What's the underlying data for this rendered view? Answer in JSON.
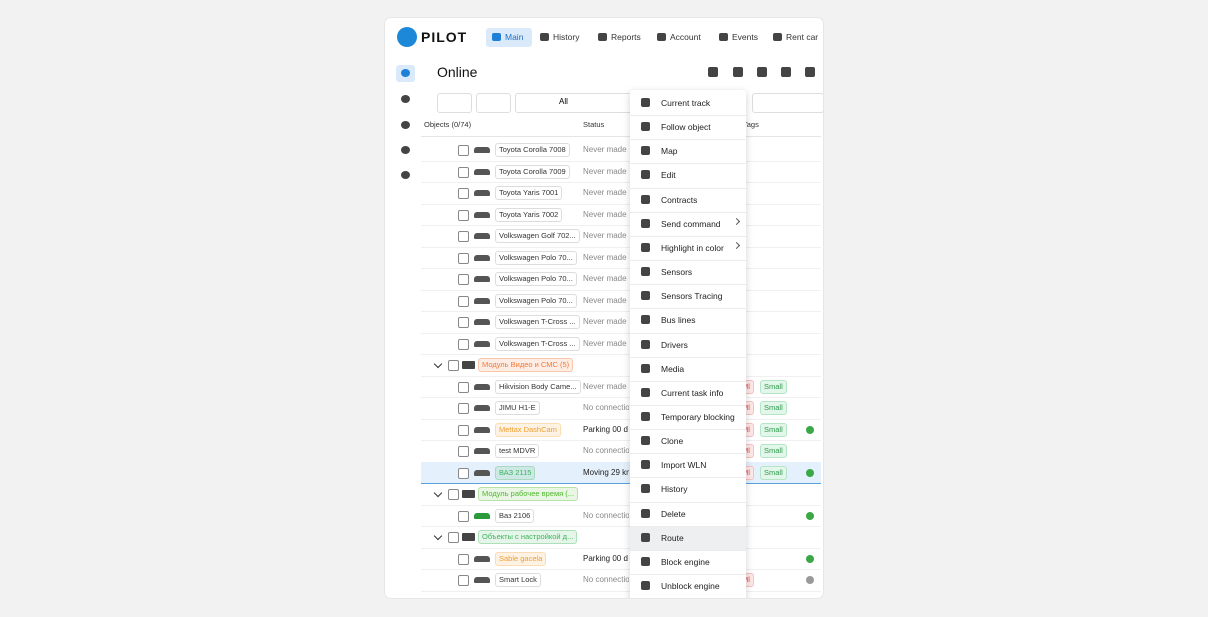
{
  "header": {
    "logo": "PILOT",
    "nav": [
      "Main",
      "History",
      "Reports",
      "Account",
      "Events",
      "Rent car"
    ]
  },
  "page": {
    "title": "Online"
  },
  "filter": {
    "status": "All"
  },
  "table": {
    "columns": [
      "Objects (0/74)",
      "Status",
      "Tags"
    ],
    "items": [
      {
        "name": "Toyota Corolla 7008",
        "status": "Never made c"
      },
      {
        "name": "Toyota Corolla 7009",
        "status": "Never made c"
      },
      {
        "name": "Toyota Yaris 7001",
        "status": "Never made c"
      },
      {
        "name": "Toyota Yaris 7002",
        "status": "Never made c"
      },
      {
        "name": "Volkswagen Golf 702...",
        "status": "Never made c"
      },
      {
        "name": "Volkswagen Polo 70...",
        "status": "Never made c"
      },
      {
        "name": "Volkswagen Polo 70...",
        "status": "Never made c"
      },
      {
        "name": "Volkswagen Polo 70...",
        "status": "Never made c"
      },
      {
        "name": "Volkswagen T-Cross ...",
        "status": "Never made c"
      },
      {
        "name": "Volkswagen T-Cross ...",
        "status": "Never made c"
      },
      {
        "group": "Модуль Видео и СМС (5)",
        "color": "#f07a3a"
      },
      {
        "name": "Hikvision Body Came...",
        "status": "Never made c",
        "tags": [
          "Ml",
          "Small"
        ]
      },
      {
        "name": "JIMU H1-E",
        "status": "No connectio",
        "tags": [
          "Ml",
          "Small"
        ]
      },
      {
        "name": "Mettax DashCam",
        "status": "Parking 00 d",
        "tags": [
          "Ml",
          "Small"
        ],
        "color": "#f0a030",
        "key": true
      },
      {
        "name": "test MDVR",
        "status": "No connectio",
        "tags": [
          "Ml",
          "Small"
        ]
      },
      {
        "name": "ВАЗ 2115",
        "status": "Moving 29 km",
        "tags": [
          "Ml",
          "Small"
        ],
        "color": "#3cb55a",
        "key": true,
        "selected": true
      },
      {
        "group": "Модуль рабочее время (...",
        "color": "#52b830"
      },
      {
        "name": "Ваз 2106",
        "status": "No connectio",
        "key": true
      },
      {
        "group": "Объекты с настройкой д...",
        "color": "#3cb55a"
      },
      {
        "name": "Sable gacela",
        "status": "Parking 00 d",
        "color": "#f0a030",
        "key": true
      },
      {
        "name": "Smart Lock",
        "status": "No connectio",
        "tags": [
          "Ml"
        ],
        "key": true
      }
    ]
  },
  "menu": {
    "items": [
      "Current track",
      "Follow object",
      "Map",
      "Edit",
      "Contracts",
      "Send command",
      "Highlight in color",
      "Sensors",
      "Sensors Tracing",
      "Bus lines",
      "Drivers",
      "Media",
      "Current task info",
      "Temporary blocking",
      "Clone",
      "Import WLN",
      "History",
      "Delete",
      "Route",
      "Block engine",
      "Unblock engine"
    ]
  }
}
